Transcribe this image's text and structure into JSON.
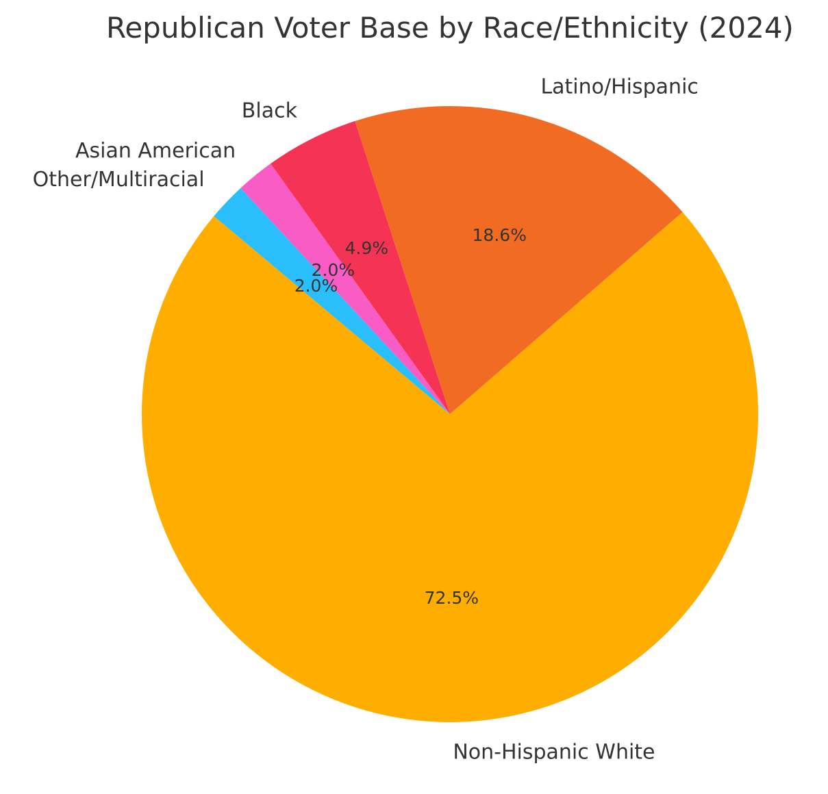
{
  "chart_data": {
    "type": "pie",
    "title": "Republican Voter Base by Race/Ethnicity (2024)",
    "start_angle_deg": 140,
    "direction": "counterclockwise",
    "slices": [
      {
        "label": "Non-Hispanic White",
        "value": 72.5,
        "pct_label": "72.5%",
        "color": "#FFAE00"
      },
      {
        "label": "Latino/Hispanic",
        "value": 18.6,
        "pct_label": "18.6%",
        "color": "#F26B22"
      },
      {
        "label": "Black",
        "value": 4.9,
        "pct_label": "4.9%",
        "color": "#F53455"
      },
      {
        "label": "Asian American",
        "value": 2.0,
        "pct_label": "2.0%",
        "color": "#F95CC5"
      },
      {
        "label": "Other/Multiracial",
        "value": 2.0,
        "pct_label": "2.0%",
        "color": "#2ABEFC"
      }
    ]
  }
}
